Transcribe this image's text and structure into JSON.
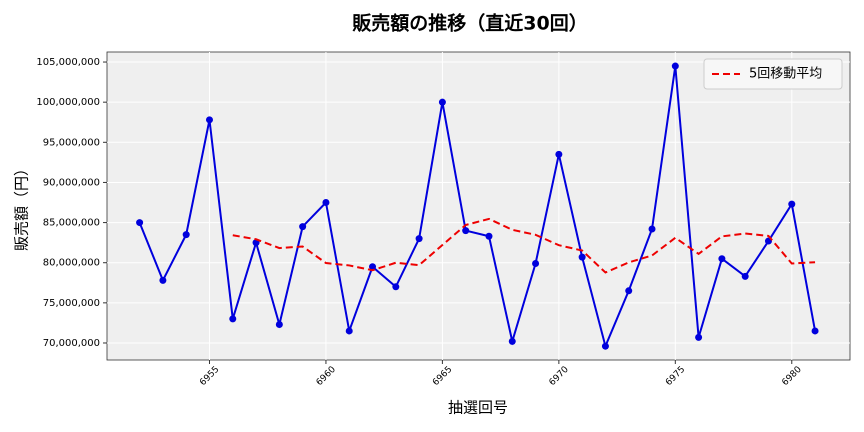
{
  "chart_data": {
    "type": "line",
    "title": "販売額の推移（直近30回）",
    "xlabel": "抽選回号",
    "ylabel": "販売額（円）",
    "x": [
      6952,
      6953,
      6954,
      6955,
      6956,
      6957,
      6958,
      6959,
      6960,
      6961,
      6962,
      6963,
      6964,
      6965,
      6966,
      6967,
      6968,
      6969,
      6970,
      6971,
      6972,
      6973,
      6974,
      6975,
      6976,
      6977,
      6978,
      6979,
      6980,
      6981
    ],
    "series": [
      {
        "name": null,
        "color": "#0000dd",
        "style": "solid",
        "marker": true,
        "values": [
          85000000,
          77800000,
          83500000,
          97800000,
          73000000,
          82500000,
          72300000,
          84500000,
          87500000,
          71500000,
          79500000,
          77000000,
          83000000,
          100000000,
          84000000,
          83300000,
          70200000,
          79900000,
          93500000,
          80700000,
          69600000,
          76500000,
          84200000,
          104500000,
          70700000,
          80500000,
          78300000,
          82700000,
          87300000,
          71500000
        ]
      },
      {
        "name": "5回移動平均",
        "color": "#ee0000",
        "style": "dashed",
        "marker": false,
        "values": [
          null,
          null,
          null,
          null,
          83420000,
          82920000,
          81820000,
          82020000,
          79960000,
          79660000,
          79060000,
          80000000,
          79700000,
          82200000,
          84700000,
          85460000,
          84100000,
          83480000,
          82180000,
          81520000,
          78780000,
          80040000,
          80900000,
          83100000,
          81100000,
          83280000,
          83640000,
          83340000,
          79900000,
          80060000
        ]
      }
    ],
    "xlim": [
      6950.6,
      6982.5
    ],
    "ylim": [
      67880000,
      106250000
    ],
    "xticks": [
      6955,
      6960,
      6965,
      6970,
      6975,
      6980
    ],
    "yticks": [
      {
        "value": 70000000,
        "label": "70,000,000"
      },
      {
        "value": 75000000,
        "label": "75,000,000"
      },
      {
        "value": 80000000,
        "label": "80,000,000"
      },
      {
        "value": 85000000,
        "label": "85,000,000"
      },
      {
        "value": 90000000,
        "label": "90,000,000"
      },
      {
        "value": 95000000,
        "label": "95,000,000"
      },
      {
        "value": 100000000,
        "label": "100,000,000"
      },
      {
        "value": 105000000,
        "label": "105,000,000"
      }
    ],
    "grid": true,
    "legend": "upper right"
  }
}
